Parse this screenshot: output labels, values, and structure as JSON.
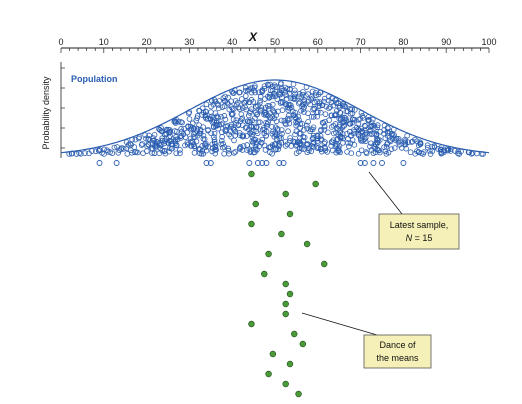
{
  "axis": {
    "title": "X",
    "min": 0,
    "max": 100,
    "major_ticks": [
      0,
      10,
      20,
      30,
      40,
      50,
      60,
      70,
      80,
      90,
      100
    ],
    "minor_step": 2
  },
  "y_axis_label": "Probability density",
  "population": {
    "label": "Population",
    "mean": 50,
    "sd": 20,
    "curve_color": "#2a5db0",
    "dot_color": "#2a5db0",
    "dot_count": 1000
  },
  "latest_sample": {
    "n": 15,
    "values": [
      9,
      13,
      34,
      35,
      44,
      46,
      47,
      48,
      51,
      52,
      70,
      71,
      73,
      75,
      80
    ]
  },
  "means": {
    "color": "#4a9a3a",
    "values": [
      44.5,
      59.5,
      52.5,
      45.5,
      53.5,
      44.5,
      51.5,
      57.5,
      48.5,
      61.5,
      47.5,
      52.5,
      53.5,
      52.5,
      52.5,
      44.5,
      54.5,
      56.5,
      49.5,
      53.5,
      48.5,
      52.5,
      55.5
    ]
  },
  "callouts": [
    {
      "id": "latest-sample",
      "line1": "Latest sample,",
      "line2_prefix": "N",
      "line2_suffix": " = 15"
    },
    {
      "id": "dance",
      "line1": "Dance of",
      "line2": "the means"
    }
  ],
  "callout_fill": "#f5f0b8"
}
